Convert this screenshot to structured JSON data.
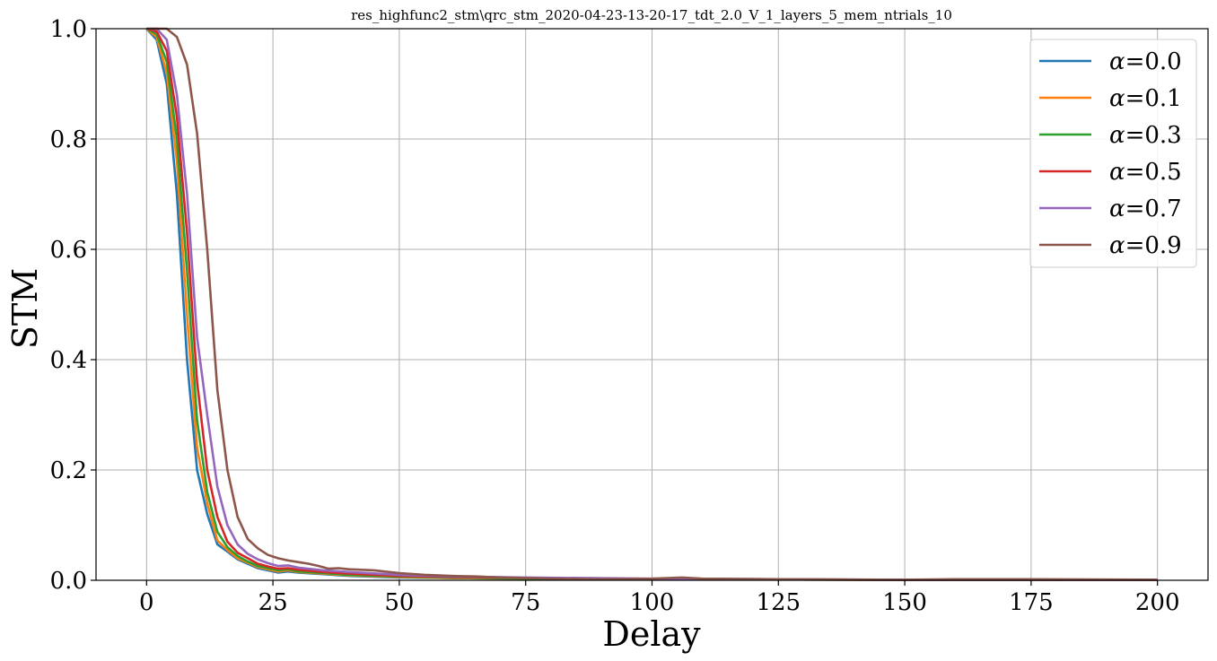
{
  "chart_data": {
    "type": "line",
    "title": "res_highfunc2_stm\\qrc_stm_2020-04-23-13-20-17_tdt_2.0_V_1_layers_5_mem_ntrials_10",
    "xlabel": "Delay",
    "ylabel": "STM",
    "xlim": [
      -10,
      210
    ],
    "ylim": [
      0.0,
      1.0
    ],
    "xticks": [
      0,
      25,
      50,
      75,
      100,
      125,
      150,
      175,
      200
    ],
    "xtick_labels": [
      "0",
      "25",
      "50",
      "75",
      "100",
      "125",
      "150",
      "175",
      "200"
    ],
    "yticks": [
      0.0,
      0.2,
      0.4,
      0.6,
      0.8,
      1.0
    ],
    "ytick_labels": [
      "0.0",
      "0.2",
      "0.4",
      "0.6",
      "0.8",
      "1.0"
    ],
    "grid": true,
    "legend_position": "top-right",
    "legend_symbol": "α",
    "series": [
      {
        "name": "=0.0",
        "color": "#1f77b4",
        "x": [
          0,
          2,
          4,
          6,
          8,
          10,
          12,
          14,
          16,
          18,
          20,
          22,
          24,
          26,
          28,
          30,
          35,
          40,
          50,
          60,
          75,
          100,
          150,
          200
        ],
        "y": [
          1.0,
          0.98,
          0.9,
          0.7,
          0.4,
          0.2,
          0.12,
          0.065,
          0.052,
          0.038,
          0.03,
          0.022,
          0.018,
          0.014,
          0.016,
          0.014,
          0.011,
          0.008,
          0.005,
          0.004,
          0.003,
          0.002,
          0.001,
          0.001
        ]
      },
      {
        "name": "=0.1",
        "color": "#ff7f0e",
        "x": [
          0,
          2,
          4,
          6,
          8,
          10,
          12,
          14,
          16,
          18,
          20,
          22,
          24,
          26,
          28,
          30,
          35,
          40,
          50,
          60,
          75,
          100,
          150,
          200
        ],
        "y": [
          1.0,
          0.985,
          0.92,
          0.76,
          0.48,
          0.24,
          0.14,
          0.072,
          0.055,
          0.04,
          0.032,
          0.024,
          0.02,
          0.016,
          0.018,
          0.015,
          0.012,
          0.009,
          0.006,
          0.004,
          0.003,
          0.002,
          0.001,
          0.001
        ]
      },
      {
        "name": "=0.3",
        "color": "#2ca02c",
        "x": [
          0,
          2,
          4,
          6,
          8,
          10,
          12,
          14,
          16,
          18,
          20,
          22,
          24,
          26,
          28,
          30,
          35,
          40,
          50,
          60,
          75,
          100,
          150,
          200
        ],
        "y": [
          1.0,
          0.99,
          0.94,
          0.8,
          0.56,
          0.29,
          0.16,
          0.088,
          0.06,
          0.044,
          0.034,
          0.026,
          0.022,
          0.018,
          0.02,
          0.016,
          0.013,
          0.01,
          0.007,
          0.005,
          0.003,
          0.002,
          0.001,
          0.001
        ]
      },
      {
        "name": "=0.5",
        "color": "#d62728",
        "x": [
          0,
          2,
          4,
          6,
          8,
          10,
          12,
          14,
          16,
          18,
          20,
          22,
          24,
          26,
          28,
          30,
          35,
          40,
          50,
          60,
          75,
          100,
          150,
          200
        ],
        "y": [
          1.0,
          0.995,
          0.96,
          0.84,
          0.63,
          0.36,
          0.2,
          0.115,
          0.07,
          0.05,
          0.04,
          0.03,
          0.025,
          0.021,
          0.022,
          0.019,
          0.015,
          0.012,
          0.008,
          0.006,
          0.004,
          0.002,
          0.001,
          0.001
        ]
      },
      {
        "name": "=0.7",
        "color": "#9467bd",
        "x": [
          0,
          2,
          4,
          6,
          8,
          10,
          12,
          14,
          16,
          18,
          20,
          22,
          24,
          26,
          28,
          30,
          35,
          40,
          50,
          60,
          75,
          100,
          150,
          200
        ],
        "y": [
          1.0,
          1.0,
          0.98,
          0.88,
          0.7,
          0.44,
          0.3,
          0.17,
          0.1,
          0.065,
          0.048,
          0.038,
          0.031,
          0.026,
          0.027,
          0.023,
          0.018,
          0.015,
          0.01,
          0.007,
          0.005,
          0.003,
          0.001,
          0.001
        ]
      },
      {
        "name": "=0.9",
        "color": "#8c564b",
        "x": [
          0,
          2,
          4,
          6,
          8,
          10,
          12,
          14,
          16,
          18,
          20,
          22,
          24,
          26,
          28,
          30,
          32,
          34,
          36,
          38,
          40,
          45,
          50,
          55,
          60,
          65,
          70,
          75,
          80,
          90,
          100,
          106,
          110,
          125,
          150,
          160,
          175,
          200
        ],
        "y": [
          1.0,
          1.0,
          1.0,
          0.985,
          0.935,
          0.81,
          0.6,
          0.345,
          0.2,
          0.115,
          0.075,
          0.058,
          0.046,
          0.04,
          0.036,
          0.033,
          0.03,
          0.026,
          0.021,
          0.022,
          0.02,
          0.018,
          0.013,
          0.01,
          0.008,
          0.007,
          0.005,
          0.004,
          0.003,
          0.002,
          0.003,
          0.005,
          0.003,
          0.002,
          0.001,
          0.002,
          0.002,
          0.001
        ]
      }
    ]
  }
}
